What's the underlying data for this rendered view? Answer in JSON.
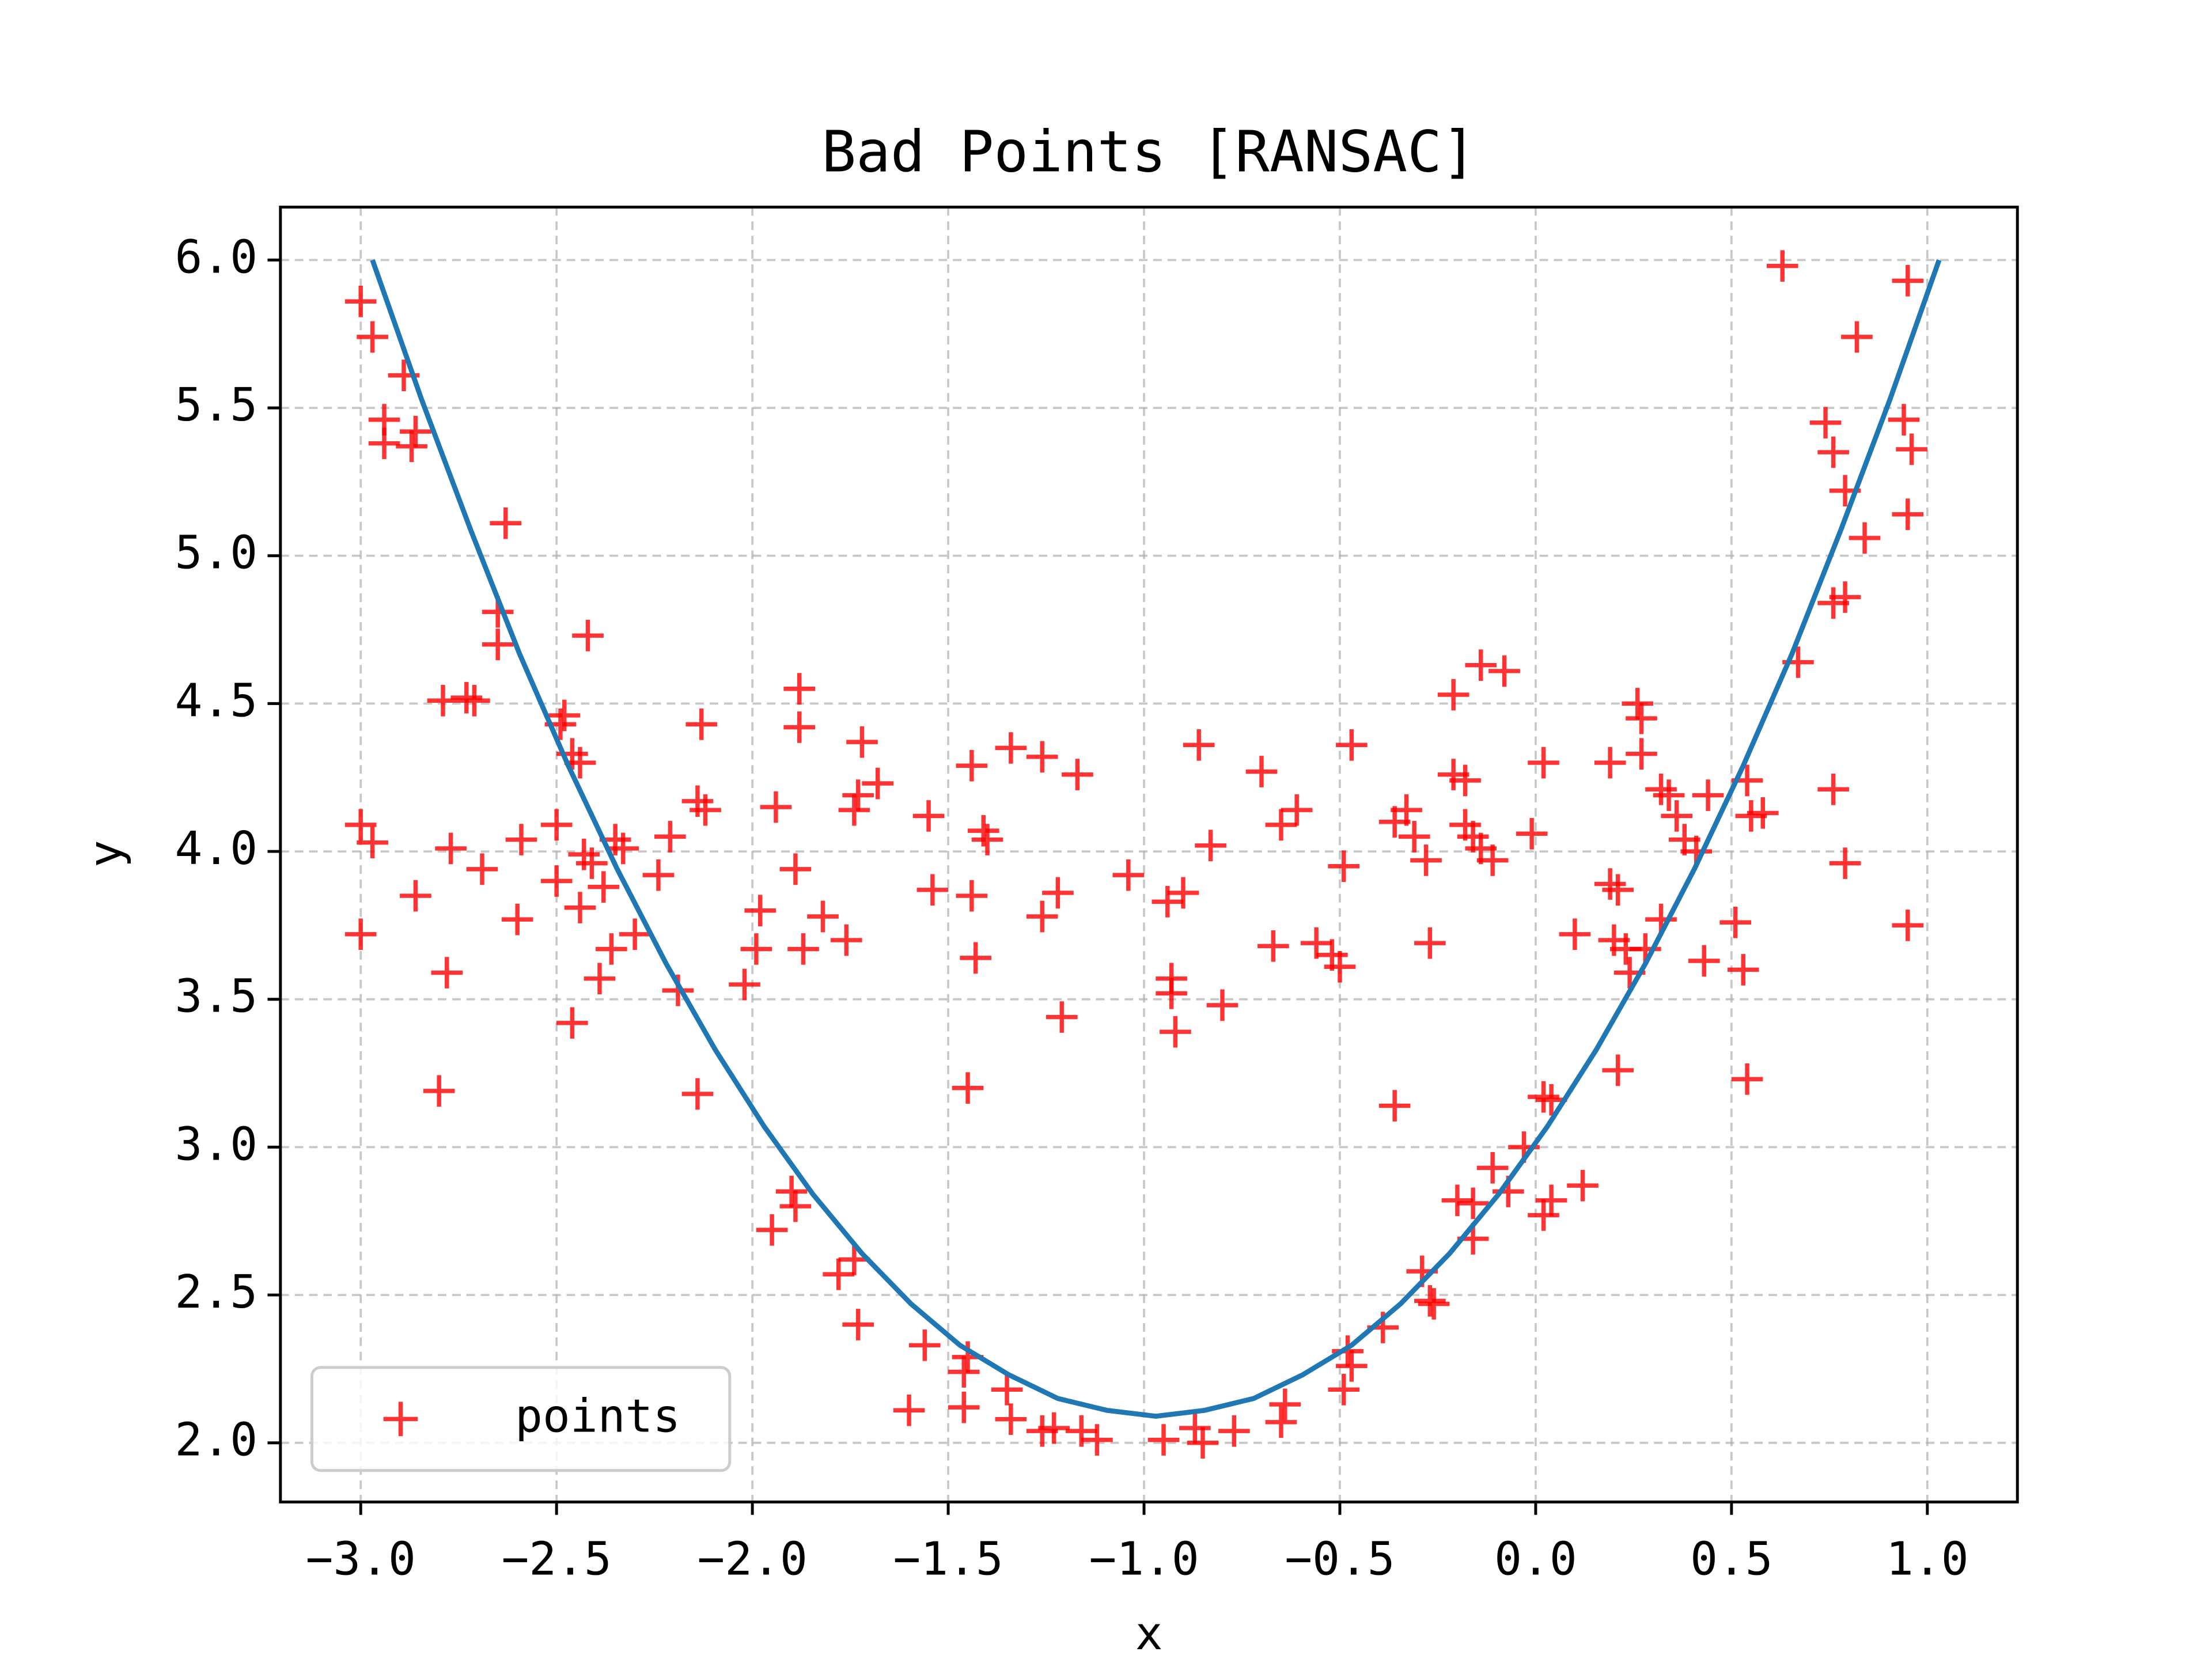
{
  "chart_data": {
    "type": "scatter",
    "title": "Bad Points [RANSAC]",
    "x_label": "x",
    "y_label": "y",
    "xlim": [
      -3.205,
      1.23
    ],
    "ylim": [
      1.8,
      6.179
    ],
    "xticks": [
      {
        "value": -3,
        "label": "−3.0"
      },
      {
        "value": -2.5,
        "label": "−2.5"
      },
      {
        "value": -2,
        "label": "−2.0"
      },
      {
        "value": -1.5,
        "label": "−1.5"
      },
      {
        "value": -1,
        "label": "−1.0"
      },
      {
        "value": -0.5,
        "label": "−0.5"
      },
      {
        "value": 0,
        "label": "0.0"
      },
      {
        "value": 0.5,
        "label": "0.5"
      },
      {
        "value": 1,
        "label": "1.0"
      }
    ],
    "yticks": [
      {
        "value": 2,
        "label": "2.0"
      },
      {
        "value": 2.5,
        "label": "2.5"
      },
      {
        "value": 3,
        "label": "3.0"
      },
      {
        "value": 3.5,
        "label": "3.5"
      },
      {
        "value": 4,
        "label": "4.0"
      },
      {
        "value": 4.5,
        "label": "4.5"
      },
      {
        "value": 5,
        "label": "5.0"
      },
      {
        "value": 5.5,
        "label": "5.5"
      },
      {
        "value": 6,
        "label": "6.0"
      }
    ],
    "grid": true,
    "legend": "lower left",
    "series": [
      {
        "name": "points",
        "color": "#ff0000",
        "marker": "+",
        "x": [
          -3.0,
          -2.97,
          -2.89,
          -2.94,
          -2.94,
          -2.86,
          -2.87,
          -2.63,
          -2.65,
          -2.65,
          -2.42,
          -2.79,
          -2.73,
          -2.71,
          -2.48,
          -2.49,
          -2.46,
          -2.44,
          -3.0,
          -2.97,
          -2.77,
          -2.69,
          -2.59,
          -2.5,
          -2.5,
          -2.43,
          -2.41,
          -2.35,
          -2.33,
          -2.38,
          -2.44,
          -2.86,
          -2.6,
          -3.0,
          -2.36,
          -2.3,
          -2.39,
          -2.78,
          -2.46,
          -2.8,
          -2.21,
          -2.24,
          -2.19,
          -2.13,
          -2.14,
          -2.12,
          -2.14,
          -1.88,
          -1.88,
          -1.94,
          -1.89,
          -1.98,
          -1.99,
          -2.02,
          -1.87,
          -1.82,
          -1.76,
          -1.72,
          -1.74,
          -1.73,
          -1.68,
          -1.55,
          -1.54,
          -1.44,
          -1.41,
          -1.4,
          -1.44,
          -1.43,
          -1.45,
          -1.34,
          -1.26,
          -1.17,
          -1.22,
          -1.26,
          -1.21,
          -1.04,
          -0.94,
          -0.9,
          -0.86,
          -0.83,
          -0.93,
          -0.93,
          -0.92,
          -0.8,
          -0.7,
          -0.65,
          -0.61,
          -0.67,
          -0.56,
          -0.52,
          -0.5,
          -0.47,
          -0.49,
          -0.36,
          -0.33,
          -0.31,
          -0.28,
          -0.27,
          -0.36,
          -0.21,
          -0.21,
          -0.18,
          -0.18,
          -0.16,
          -0.14,
          -0.11,
          -0.14,
          -0.08,
          -0.01,
          0.02,
          0.19,
          0.1,
          0.19,
          0.26,
          0.27,
          0.27,
          0.32,
          0.34,
          0.36,
          0.38,
          0.41,
          0.44,
          0.21,
          0.2,
          0.23,
          0.24,
          0.32,
          0.28,
          0.43,
          0.51,
          0.53,
          0.54,
          0.55,
          0.58,
          0.54,
          0.21,
          0.76,
          0.79,
          0.95,
          0.63,
          0.95,
          0.82,
          0.74,
          0.76,
          0.94,
          0.96,
          0.79,
          0.95,
          0.84,
          0.76,
          0.79,
          0.67,
          -1.95,
          -1.9,
          -1.89,
          -1.78,
          -1.74,
          -1.73,
          -1.56,
          -1.6,
          -1.46,
          -1.45,
          -1.46,
          -1.35,
          -1.34,
          -1.26,
          -1.23,
          -1.16,
          -1.12,
          -0.95,
          -0.87,
          -0.85,
          -0.77,
          -0.65,
          -0.64,
          -0.48,
          -0.47,
          -0.49,
          -0.39,
          -0.29,
          -0.27,
          -0.26,
          -0.2,
          -0.16,
          -0.11,
          -0.07,
          -0.03,
          0.02,
          0.04,
          0.02,
          0.04,
          0.12,
          -0.16
        ],
        "values": [
          5.86,
          5.74,
          5.61,
          5.46,
          5.38,
          5.42,
          5.37,
          5.11,
          4.81,
          4.7,
          4.73,
          4.51,
          4.52,
          4.51,
          4.46,
          4.43,
          4.33,
          4.3,
          4.09,
          4.03,
          4.01,
          3.94,
          4.04,
          4.09,
          3.9,
          3.99,
          3.96,
          4.04,
          4.01,
          3.88,
          3.81,
          3.85,
          3.77,
          3.72,
          3.67,
          3.72,
          3.57,
          3.59,
          3.42,
          3.19,
          4.05,
          3.92,
          3.53,
          4.43,
          4.17,
          4.14,
          3.18,
          4.55,
          4.42,
          4.15,
          3.94,
          3.8,
          3.67,
          3.55,
          3.67,
          3.78,
          3.7,
          4.37,
          4.14,
          4.19,
          4.23,
          4.12,
          3.87,
          4.29,
          4.07,
          4.04,
          3.85,
          3.64,
          3.2,
          4.35,
          4.32,
          4.26,
          3.86,
          3.78,
          3.44,
          3.92,
          3.83,
          3.86,
          4.36,
          4.02,
          3.57,
          3.52,
          3.39,
          3.48,
          4.27,
          4.09,
          4.14,
          3.68,
          3.69,
          3.65,
          3.61,
          4.36,
          3.95,
          3.14,
          4.14,
          4.05,
          3.97,
          3.69,
          4.1,
          4.53,
          4.26,
          4.24,
          4.09,
          4.05,
          4.01,
          3.97,
          4.63,
          4.61,
          4.06,
          4.3,
          3.89,
          3.72,
          4.3,
          4.5,
          4.45,
          4.33,
          4.21,
          4.19,
          4.12,
          4.04,
          4.0,
          4.19,
          3.87,
          3.7,
          3.67,
          3.59,
          3.77,
          3.67,
          3.63,
          3.76,
          3.6,
          4.24,
          4.12,
          4.13,
          3.23,
          3.26,
          4.21,
          3.96,
          3.75,
          5.98,
          5.93,
          5.74,
          5.45,
          5.35,
          5.46,
          5.36,
          5.22,
          5.14,
          5.06,
          4.84,
          4.86,
          4.64,
          2.72,
          2.85,
          2.8,
          2.57,
          2.62,
          2.4,
          2.33,
          2.11,
          2.24,
          2.29,
          2.12,
          2.18,
          2.08,
          2.04,
          2.05,
          2.04,
          2.01,
          2.01,
          2.05,
          2.0,
          2.04,
          2.07,
          2.13,
          2.31,
          2.26,
          2.18,
          2.39,
          2.58,
          2.48,
          2.47,
          2.82,
          2.69,
          2.93,
          2.85,
          3.0,
          3.17,
          3.16,
          2.77,
          2.82,
          2.87,
          2.81
        ]
      },
      {
        "color": "#1f77b4",
        "style": "line",
        "x": [
          -2.97,
          -2.845,
          -2.72,
          -2.595,
          -2.47,
          -2.345,
          -2.22,
          -2.095,
          -1.97,
          -1.845,
          -1.72,
          -1.595,
          -1.47,
          -1.345,
          -1.22,
          -1.095,
          -0.97,
          -0.845,
          -0.72,
          -0.595,
          -0.47,
          -0.345,
          -0.22,
          -0.095,
          0.03,
          0.155,
          0.28,
          0.405,
          0.53,
          0.655,
          0.78,
          0.905,
          1.03
        ],
        "values": [
          6.0,
          5.53,
          5.09,
          4.67,
          4.29,
          3.94,
          3.62,
          3.33,
          3.07,
          2.84,
          2.64,
          2.47,
          2.33,
          2.23,
          2.15,
          2.11,
          2.09,
          2.11,
          2.15,
          2.23,
          2.33,
          2.47,
          2.64,
          2.84,
          3.07,
          3.33,
          3.62,
          3.94,
          4.29,
          4.67,
          5.09,
          5.53,
          6.0
        ]
      }
    ]
  }
}
